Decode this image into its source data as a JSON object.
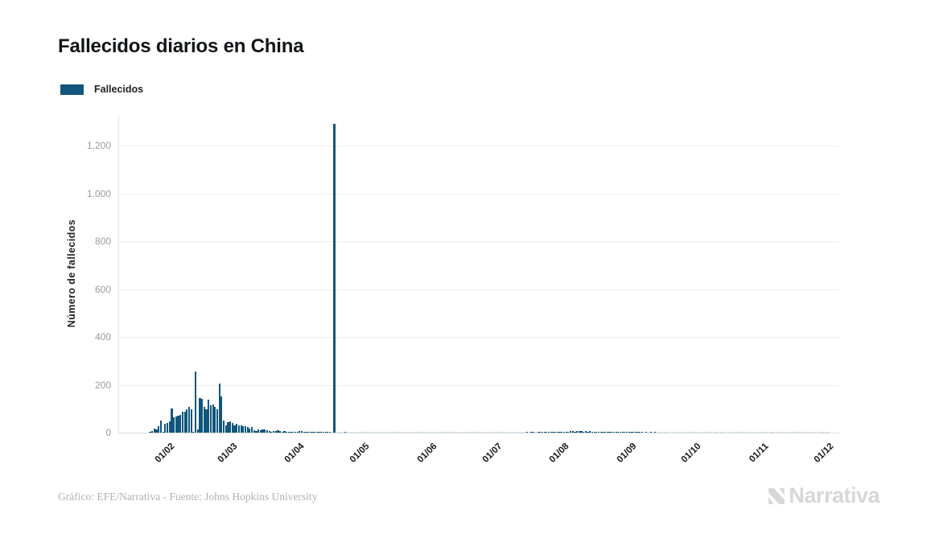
{
  "header": {
    "title": "Fallecidos diarios en China"
  },
  "chart_data": {
    "type": "bar",
    "title": "Fallecidos diarios en China",
    "ylabel": "Número de fallecidos",
    "ylim": [
      0,
      1320
    ],
    "grid": "horizontal",
    "legend_position": "top-left",
    "bar_color": "#10567a",
    "zero_bar_color": "#ccdee9",
    "yticks": [
      {
        "v": 0,
        "label": "0"
      },
      {
        "v": 200,
        "label": "200"
      },
      {
        "v": 400,
        "label": "400"
      },
      {
        "v": 600,
        "label": "600"
      },
      {
        "v": 800,
        "label": "800"
      },
      {
        "v": 1000,
        "label": "1.000"
      },
      {
        "v": 1200,
        "label": "1.200"
      }
    ],
    "xticks": [
      {
        "day": 9,
        "label": "01/02"
      },
      {
        "day": 38,
        "label": "01/03"
      },
      {
        "day": 69,
        "label": "01/04"
      },
      {
        "day": 99,
        "label": "01/05"
      },
      {
        "day": 130,
        "label": "01/06"
      },
      {
        "day": 160,
        "label": "01/07"
      },
      {
        "day": 191,
        "label": "01/08"
      },
      {
        "day": 222,
        "label": "01/09"
      },
      {
        "day": 252,
        "label": "01/10"
      },
      {
        "day": 283,
        "label": "01/11"
      },
      {
        "day": 313,
        "label": "01/12"
      }
    ],
    "series": [
      {
        "name": "Fallecidos",
        "color": "#10567a",
        "values": [
          1,
          8,
          16,
          14,
          26,
          49,
          2,
          38,
          42,
          46,
          102,
          64,
          66,
          72,
          73,
          86,
          89,
          97,
          108,
          97,
          5,
          254,
          13,
          144,
          142,
          106,
          98,
          139,
          115,
          118,
          109,
          97,
          205,
          150,
          52,
          29,
          44,
          47,
          42,
          31,
          38,
          31,
          30,
          28,
          27,
          22,
          17,
          22,
          11,
          7,
          13,
          10,
          14,
          13,
          11,
          8,
          3,
          7,
          6,
          9,
          7,
          4,
          6,
          5,
          3,
          5,
          5,
          2,
          1,
          7,
          6,
          4,
          4,
          3,
          2,
          2,
          2,
          2,
          1,
          2,
          1,
          1,
          1,
          1,
          0,
          1290,
          0,
          0,
          0,
          0,
          1,
          0,
          0,
          0,
          0,
          0,
          0,
          0,
          0,
          0,
          0,
          0,
          0,
          0,
          0,
          0,
          0,
          0,
          0,
          0,
          0,
          0,
          0,
          0,
          0,
          0,
          0,
          0,
          0,
          0,
          0,
          0,
          0,
          0,
          0,
          0,
          0,
          0,
          0,
          0,
          0,
          0,
          0,
          0,
          0,
          0,
          0,
          0,
          0,
          0,
          0,
          0,
          0,
          0,
          0,
          0,
          0,
          0,
          0,
          0,
          0,
          0,
          0,
          0,
          0,
          0,
          0,
          0,
          0,
          0,
          0,
          0,
          0,
          0,
          0,
          0,
          0,
          0,
          0,
          0,
          0,
          0,
          0,
          0,
          1,
          0,
          1,
          2,
          0,
          1,
          2,
          2,
          2,
          3,
          2,
          3,
          2,
          3,
          5,
          3,
          4,
          4,
          5,
          4,
          6,
          6,
          5,
          7,
          8,
          6,
          5,
          6,
          5,
          6,
          5,
          4,
          3,
          5,
          4,
          3,
          4,
          3,
          2,
          3,
          2,
          3,
          2,
          2,
          1,
          2,
          1,
          2,
          2,
          1,
          1,
          1,
          2,
          1,
          0,
          1,
          0,
          1,
          0,
          1,
          0,
          0,
          0,
          0,
          0,
          0,
          0,
          0,
          0,
          0,
          0,
          0,
          0,
          0,
          0,
          0,
          0,
          0,
          0,
          0,
          0,
          0,
          0,
          0,
          0,
          0,
          0,
          0,
          0,
          0,
          0,
          0,
          0,
          0,
          0,
          0,
          0,
          0,
          0,
          0,
          0,
          0,
          0,
          0,
          0,
          0,
          0,
          0,
          0,
          0,
          0,
          0,
          0,
          0,
          0,
          0,
          0,
          0,
          0,
          0,
          0,
          0,
          0,
          0,
          0,
          0,
          0,
          0,
          0,
          0,
          0,
          0,
          0,
          0,
          0,
          0,
          0,
          0,
          0,
          0
        ]
      }
    ]
  },
  "footer": {
    "credit": "Gráfico: EFE/Narrativa - Fuente: Johns Hopkins University",
    "brand": "Narrativa"
  }
}
